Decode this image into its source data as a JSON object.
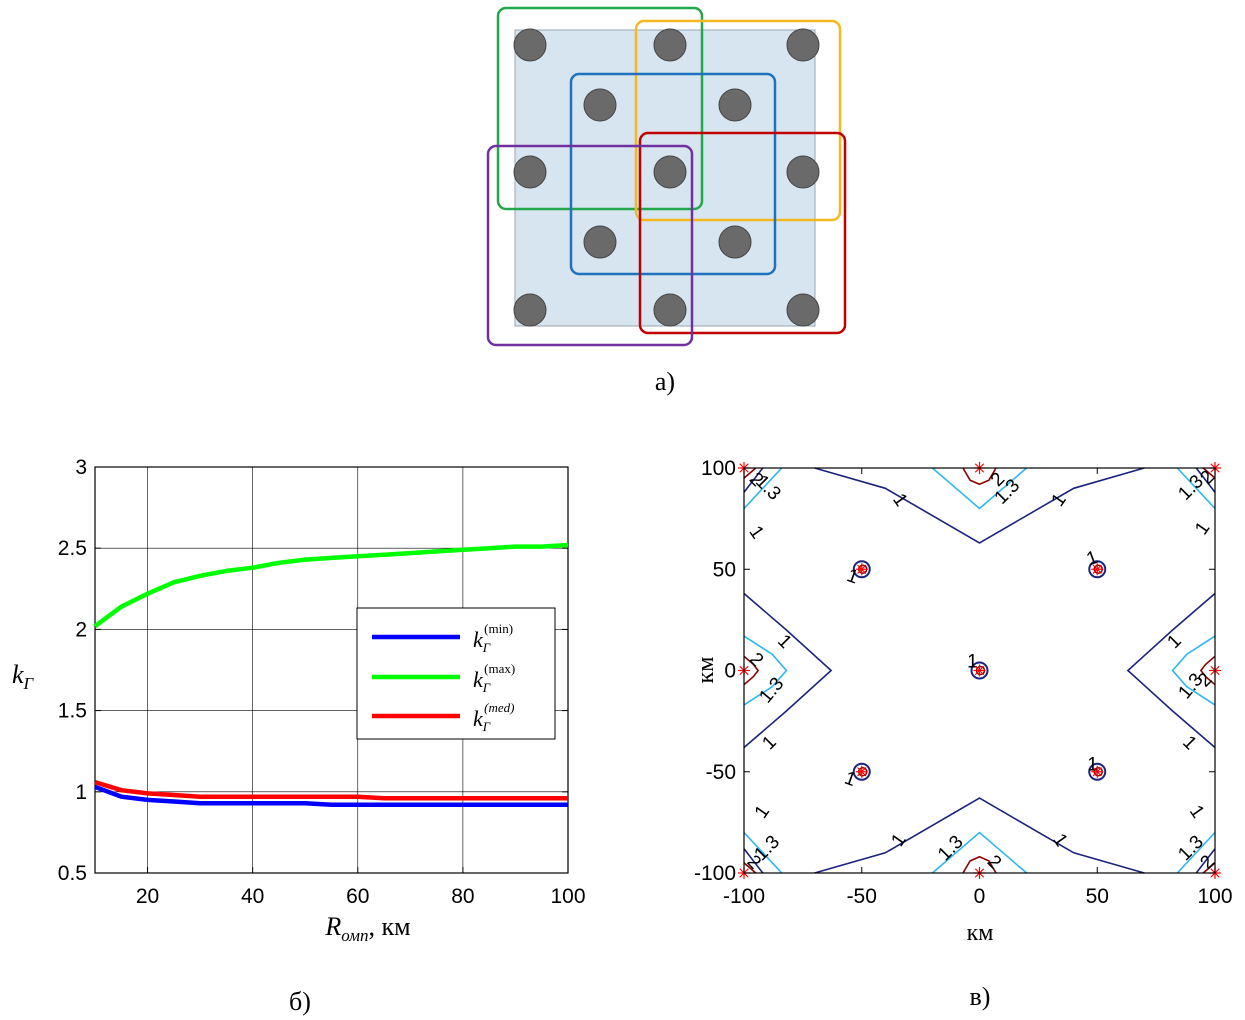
{
  "captions": {
    "a": "а)",
    "b": "б)",
    "c": "в)"
  },
  "diagram": {
    "colors": {
      "panel": "#d7e5f1",
      "node": "#6a6a6a",
      "green": "#22a84a",
      "yellow": "#f5b820",
      "blue": "#1f72bd",
      "red": "#c00000",
      "purple": "#7030a0"
    },
    "rows": [
      {
        "cols": [
          0,
          2,
          4
        ]
      },
      {
        "cols": [
          1,
          3
        ]
      },
      {
        "cols": [
          0,
          2,
          4
        ]
      },
      {
        "cols": [
          1,
          3
        ]
      },
      {
        "cols": [
          0,
          2,
          4
        ]
      }
    ]
  },
  "chart_data": [
    {
      "type": "line",
      "title": "",
      "xlabel": {
        "main": "R",
        "sub": "омп",
        "suffix": ", км"
      },
      "ylabel": {
        "main": "k",
        "sub": "Г"
      },
      "xlim": [
        10,
        100
      ],
      "ylim": [
        0.5,
        3
      ],
      "xticks": [
        "20",
        "40",
        "60",
        "80",
        "100"
      ],
      "yticks": [
        "0.5",
        "1",
        "1.5",
        "2",
        "2.5",
        "3"
      ],
      "grid": true,
      "legend_position": "right",
      "x": [
        10,
        15,
        20,
        25,
        30,
        35,
        40,
        45,
        50,
        55,
        60,
        65,
        70,
        75,
        80,
        85,
        90,
        95,
        100
      ],
      "series": [
        {
          "key": "min",
          "name": {
            "main": "k",
            "sub": "Г",
            "sup": "(min)"
          },
          "color": "#0000ff",
          "values": [
            1.03,
            0.97,
            0.95,
            0.94,
            0.93,
            0.93,
            0.93,
            0.93,
            0.93,
            0.92,
            0.92,
            0.92,
            0.92,
            0.92,
            0.92,
            0.92,
            0.92,
            0.92,
            0.92
          ]
        },
        {
          "key": "max",
          "name": {
            "main": "k",
            "sub": "Г",
            "sup": "(max)"
          },
          "color": "#00ff00",
          "values": [
            2.02,
            2.14,
            2.22,
            2.29,
            2.33,
            2.36,
            2.38,
            2.41,
            2.43,
            2.44,
            2.45,
            2.46,
            2.47,
            2.48,
            2.49,
            2.5,
            2.51,
            2.51,
            2.52
          ]
        },
        {
          "key": "med",
          "name": {
            "main": "k",
            "sub": "Г",
            "sup": "(med)"
          },
          "color": "#ff0000",
          "values": [
            1.06,
            1.01,
            0.99,
            0.98,
            0.97,
            0.97,
            0.97,
            0.97,
            0.97,
            0.97,
            0.97,
            0.96,
            0.96,
            0.96,
            0.96,
            0.96,
            0.96,
            0.96,
            0.96
          ]
        }
      ]
    },
    {
      "type": "contour",
      "title": "",
      "xlabel": "км",
      "ylabel": "км",
      "xlim": [
        -100,
        100
      ],
      "ylim": [
        -100,
        100
      ],
      "xticks": [
        "-100",
        "-50",
        "0",
        "50",
        "100"
      ],
      "yticks": [
        "-100",
        "-50",
        "0",
        "50",
        "100"
      ],
      "grid": false,
      "stations": [
        [
          -100,
          100
        ],
        [
          0,
          100
        ],
        [
          100,
          100
        ],
        [
          -50,
          50
        ],
        [
          50,
          50
        ],
        [
          -100,
          0
        ],
        [
          0,
          0
        ],
        [
          100,
          0
        ],
        [
          -50,
          -50
        ],
        [
          50,
          -50
        ],
        [
          -100,
          -100
        ],
        [
          0,
          -100
        ],
        [
          100,
          -100
        ]
      ],
      "levels": [
        {
          "value": 1,
          "label": "1",
          "color": "#1a237e"
        },
        {
          "value": 1.3,
          "label": "1.3",
          "color": "#29b6f6"
        },
        {
          "value": 2,
          "label": "2",
          "color": "#8b0000"
        }
      ],
      "marker_color": "#ff0000"
    }
  ]
}
